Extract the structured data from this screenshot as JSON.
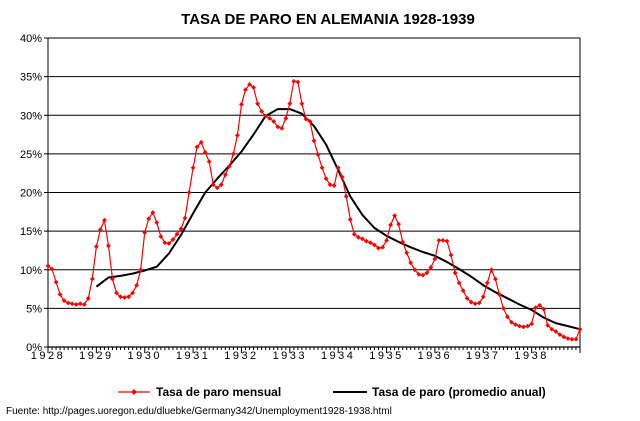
{
  "chart_data": {
    "type": "line",
    "title": "TASA DE PARO EN ALEMANIA 1928-1939",
    "xlabel": "",
    "ylabel": "",
    "xlim": [
      1928,
      1939
    ],
    "ylim": [
      0,
      40
    ],
    "x_ticks": [
      "1928",
      "1929",
      "1930",
      "1931",
      "1932",
      "1933",
      "1934",
      "1935",
      "1936",
      "1937",
      "1938"
    ],
    "y_ticks": [
      "0%",
      "5%",
      "10%",
      "15%",
      "20%",
      "25%",
      "30%",
      "35%",
      "40%"
    ],
    "grid": "horizontal",
    "legend_position": "bottom",
    "colors": {
      "monthly": "#ff0000",
      "annual": "#000000",
      "grid": "#000000"
    },
    "series": [
      {
        "name": "Tasa de paro mensual",
        "marker": "diamond",
        "x": [
          1928.0,
          1928.083,
          1928.167,
          1928.25,
          1928.333,
          1928.417,
          1928.5,
          1928.583,
          1928.667,
          1928.75,
          1928.833,
          1928.917,
          1929.0,
          1929.083,
          1929.167,
          1929.25,
          1929.333,
          1929.417,
          1929.5,
          1929.583,
          1929.667,
          1929.75,
          1929.833,
          1929.917,
          1930.0,
          1930.083,
          1930.167,
          1930.25,
          1930.333,
          1930.417,
          1930.5,
          1930.583,
          1930.667,
          1930.75,
          1930.833,
          1930.917,
          1931.0,
          1931.083,
          1931.167,
          1931.25,
          1931.333,
          1931.417,
          1931.5,
          1931.583,
          1931.667,
          1931.75,
          1931.833,
          1931.917,
          1932.0,
          1932.083,
          1932.167,
          1932.25,
          1932.333,
          1932.417,
          1932.5,
          1932.583,
          1932.667,
          1932.75,
          1932.833,
          1932.917,
          1933.0,
          1933.083,
          1933.167,
          1933.25,
          1933.333,
          1933.417,
          1933.5,
          1933.583,
          1933.667,
          1933.75,
          1933.833,
          1933.917,
          1934.0,
          1934.083,
          1934.167,
          1934.25,
          1934.333,
          1934.417,
          1934.5,
          1934.583,
          1934.667,
          1934.75,
          1934.833,
          1934.917,
          1935.0,
          1935.083,
          1935.167,
          1935.25,
          1935.333,
          1935.417,
          1935.5,
          1935.583,
          1935.667,
          1935.75,
          1935.833,
          1935.917,
          1936.0,
          1936.083,
          1936.167,
          1936.25,
          1936.333,
          1936.417,
          1936.5,
          1936.583,
          1936.667,
          1936.75,
          1936.833,
          1936.917,
          1937.0,
          1937.083,
          1937.167,
          1937.25,
          1937.333,
          1937.417,
          1937.5,
          1937.583,
          1937.667,
          1937.75,
          1937.833,
          1937.917,
          1938.0,
          1938.083,
          1938.167,
          1938.25,
          1938.333,
          1938.417,
          1938.5,
          1938.583,
          1938.667,
          1938.75,
          1938.833,
          1938.917,
          1939.0
        ],
        "values": [
          10.5,
          10.1,
          8.4,
          6.8,
          6.0,
          5.7,
          5.6,
          5.5,
          5.6,
          5.5,
          6.3,
          8.8,
          13.0,
          15.2,
          16.4,
          13.1,
          8.8,
          7.0,
          6.5,
          6.4,
          6.5,
          7.0,
          8.0,
          10.0,
          14.8,
          16.6,
          17.4,
          16.1,
          14.3,
          13.5,
          13.4,
          13.9,
          14.6,
          15.3,
          16.7,
          20.0,
          23.2,
          25.9,
          26.5,
          25.2,
          24.0,
          21.0,
          20.6,
          21.0,
          22.3,
          23.4,
          25.0,
          27.4,
          31.4,
          33.3,
          34.0,
          33.6,
          31.5,
          30.5,
          29.9,
          29.6,
          29.2,
          28.5,
          28.3,
          29.6,
          31.5,
          34.4,
          34.3,
          31.5,
          29.5,
          29.2,
          26.7,
          24.9,
          23.2,
          21.8,
          21.0,
          20.9,
          23.2,
          22.0,
          19.5,
          16.5,
          14.6,
          14.2,
          14.0,
          13.7,
          13.5,
          13.2,
          12.8,
          12.9,
          13.8,
          15.8,
          17.0,
          15.9,
          13.6,
          12.2,
          10.9,
          10.0,
          9.4,
          9.3,
          9.6,
          10.3,
          11.4,
          13.8,
          13.8,
          13.7,
          11.9,
          9.6,
          8.3,
          7.3,
          6.3,
          5.8,
          5.6,
          5.7,
          6.5,
          8.3,
          10.0,
          8.8,
          6.8,
          5.0,
          3.9,
          3.2,
          2.9,
          2.7,
          2.6,
          2.7,
          3.0,
          5.1,
          5.4,
          4.9,
          2.8,
          2.3,
          2.0,
          1.6,
          1.3,
          1.1,
          1.0,
          1.0,
          2.3
        ]
      },
      {
        "name": "Tasa de paro (promedio anual)",
        "marker": "none",
        "x": [
          1929.0,
          1929.25,
          1929.5,
          1929.75,
          1930.0,
          1930.25,
          1930.5,
          1930.75,
          1931.0,
          1931.25,
          1931.5,
          1931.75,
          1932.0,
          1932.25,
          1932.5,
          1932.75,
          1933.0,
          1933.25,
          1933.5,
          1933.75,
          1934.0,
          1934.25,
          1934.5,
          1934.75,
          1935.0,
          1935.25,
          1935.5,
          1935.75,
          1936.0,
          1936.25,
          1936.5,
          1936.75,
          1937.0,
          1937.25,
          1937.5,
          1937.75,
          1938.0,
          1938.25,
          1938.5,
          1938.75,
          1939.0
        ],
        "values": [
          7.8,
          9.0,
          9.2,
          9.5,
          9.9,
          10.4,
          12.1,
          14.5,
          17.3,
          20.0,
          21.8,
          23.5,
          25.3,
          27.5,
          29.9,
          30.8,
          30.8,
          30.2,
          28.6,
          26.2,
          22.9,
          19.5,
          17.1,
          15.4,
          14.4,
          13.6,
          12.9,
          12.3,
          11.8,
          11.0,
          10.1,
          9.1,
          8.0,
          7.1,
          6.3,
          5.5,
          4.8,
          3.8,
          3.1,
          2.7,
          2.3
        ]
      }
    ]
  },
  "source_text": "Fuente: http://pages.uoregon.edu/dluebke/Germany342/Unemployment1928-1938.html"
}
